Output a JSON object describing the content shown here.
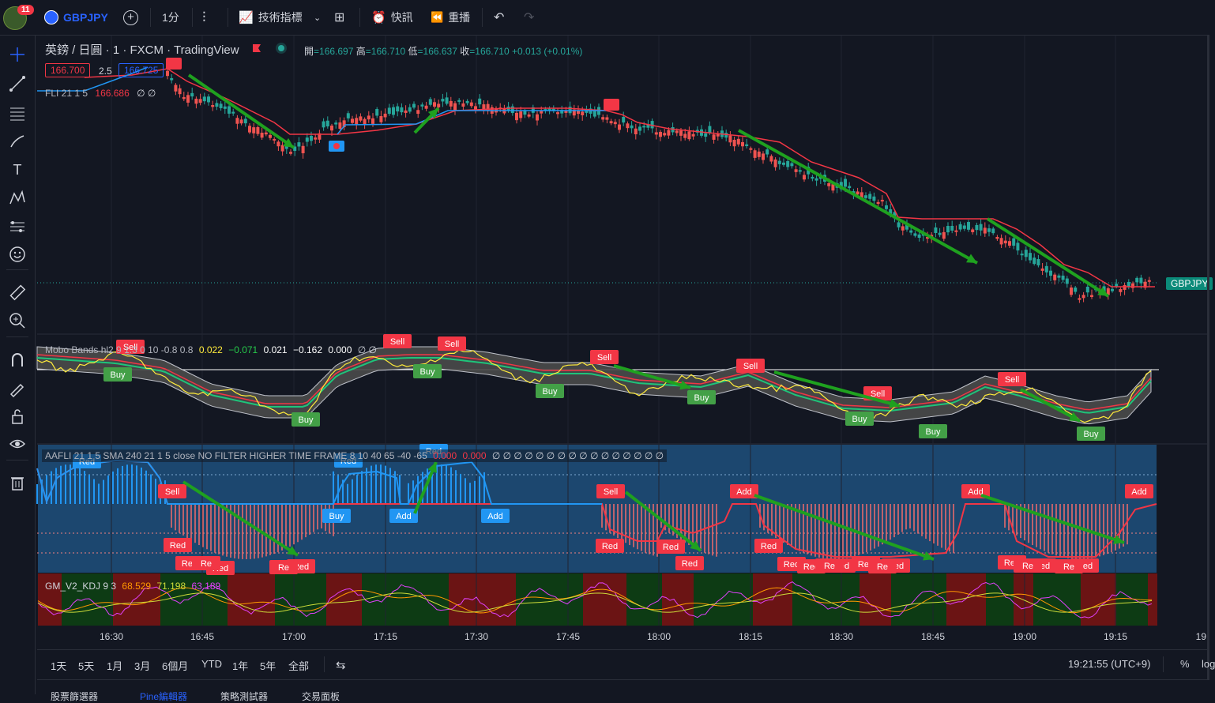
{
  "app": {
    "notification_count": "11",
    "symbol": "GBPJPY",
    "interval": "1分",
    "indicators_label": "技術指標",
    "alert_label": "快訊",
    "replay_label": "重播"
  },
  "chart": {
    "title": "英鎊 / 日圓 · 1 · FXCM · TradingView",
    "ohlc": {
      "open_label": "開",
      "open": "=166.697",
      "high_label": "高",
      "high": "=166.710",
      "low_label": "低",
      "low": "=166.637",
      "close_label": "收",
      "close": "=166.710",
      "change": "+0.013 (+0.01%)"
    },
    "sell_price": "166.700",
    "spread": "2.5",
    "buy_price": "166.725",
    "fli_legend": {
      "name": "FLI 21 1 5",
      "value": "166.686",
      "extra": "∅ ∅"
    },
    "symbol_tag": "GBPJPY",
    "colors": {
      "up": "#26a69a",
      "down": "#ef5350",
      "blue": "#2196f3",
      "arrow": "#1fa11f"
    }
  },
  "mobo": {
    "name": "Mobo Bands hl2 9 1.3 0 10 -0.8 0.8",
    "v1": "0.022",
    "v2": "−0.071",
    "v3": "0.021",
    "v4": "−0.162",
    "v5": "0.000",
    "v6": "∅ ∅",
    "labels": {
      "buy": "Buy",
      "sell": "Sell"
    }
  },
  "aafli": {
    "name": "AAFLI 21 1 5 SMA 240 21 1 5 close NO FILTER HIGHER TIME FRAME 8 10 40 65 -40 -65",
    "v1": "0.000",
    "v2": "0.000",
    "empties": "∅ ∅ ∅ ∅ ∅ ∅ ∅ ∅ ∅ ∅ ∅ ∅ ∅ ∅ ∅ ∅",
    "labels": {
      "sell": "Sell",
      "buy": "Buy",
      "add": "Add",
      "red": "Red",
      "re": "Re"
    }
  },
  "kdj": {
    "name": "GM_V2_KDJ 9 3",
    "k": "68.529",
    "d": "71.198",
    "j": "63.189"
  },
  "time_axis": [
    "16:30",
    "16:45",
    "17:00",
    "17:15",
    "17:30",
    "17:45",
    "18:00",
    "18:15",
    "18:30",
    "18:45",
    "19:00",
    "19:15",
    "19:"
  ],
  "bottom": {
    "ranges": [
      "1天",
      "5天",
      "1月",
      "3月",
      "6個月",
      "YTD",
      "1年",
      "5年",
      "全部"
    ],
    "clock": "19:21:55 (UTC+9)",
    "percent": "%",
    "log": "log"
  },
  "tabs": [
    "股票篩選器",
    "Pine編輯器",
    "策略測試器",
    "交易面板"
  ]
}
